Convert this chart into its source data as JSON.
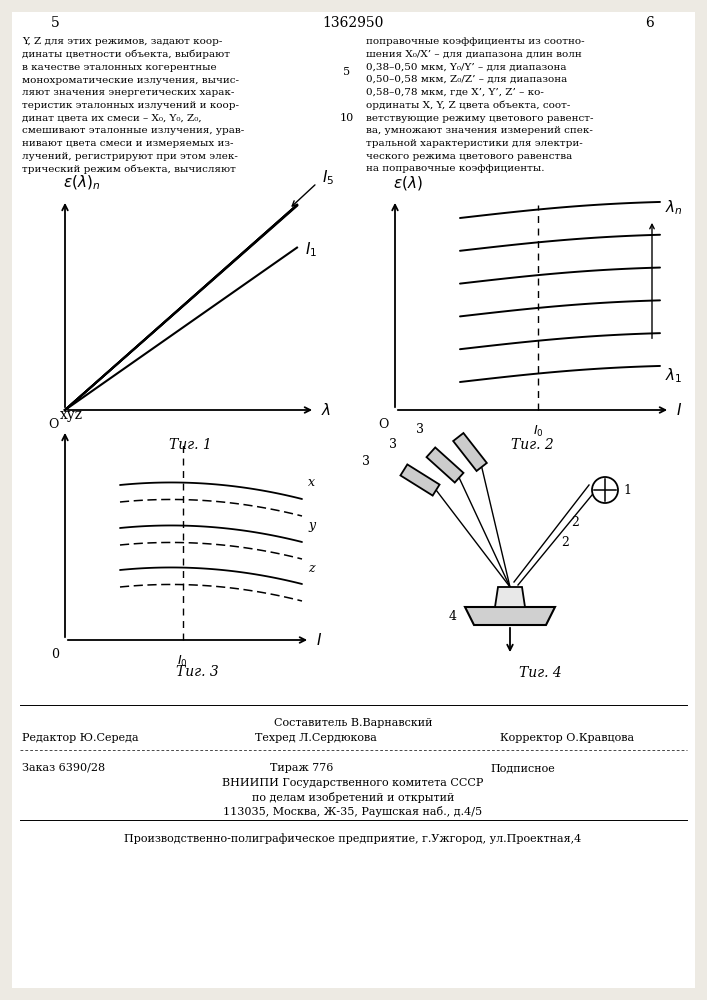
{
  "bg_color": "#edeae3",
  "page_color": "#ffffff",
  "patent_num": "1362950",
  "page_left": "5",
  "page_right": "6",
  "fig1_caption": "Τиг. 1",
  "fig2_caption": "Τиг. 2",
  "fig3_caption": "Τиг. 3",
  "fig4_caption": "Τиг. 4",
  "left_body": "Y, Z для этих режимов, задают коор-\nдинаты цветности объекта, выбирают\nв качестве эталонных когерентные\nмонохроматические излучения, вычис-\nляют значения энергетических харак-\nтеристик эталонных излучений и коор-\nдинат цвета их смеси – X₀, Y₀, Z₀,\nсмешивают эталонные излучения, урав-\nнивают цвета смеси и измеряемых из-\nлучений, регистрируют при этом элек-\nтрический режим объекта, вычисляют",
  "right_body": "поправочные коэффициенты из соотно-\nшения X₀/X’ – для диапазона длин волн\n0,38–0,50 мкм, Y₀/Y’ – для диапазона\n0,50–0,58 мкм, Z₀/Z’ – для диапазона\n0,58–0,78 мкм, где X’, Y’, Z’ – ко-\nординаты X, Y, Z цвета объекта, соот-\nветствующие режиму цветового равенст-\nва, умножают значения измерений спек-\nтральной характеристики для электри-\nческого режима цветового равенства\nна поправочные коэффициенты.",
  "footer_compiler": "Составитель В.Варнавский",
  "footer_editor": "Редактор Ю.Середа",
  "footer_tech": "Техред Л.Сердюкова",
  "footer_corrector": "Корректор О.Кравцова",
  "footer_order": "Заказ 6390/28",
  "footer_print": "Тираж 776",
  "footer_sub": "Подписное",
  "footer_org": "ВНИИПИ Государственного комитета СССР",
  "footer_dept": "по делам изобретений и открытий",
  "footer_addr": "113035, Москва, Ж-35, Раушская наб., д.4/5",
  "footer_plant": "Производственно-полиграфическое предприятие, г.Ужгород, ул.Проектная,4"
}
